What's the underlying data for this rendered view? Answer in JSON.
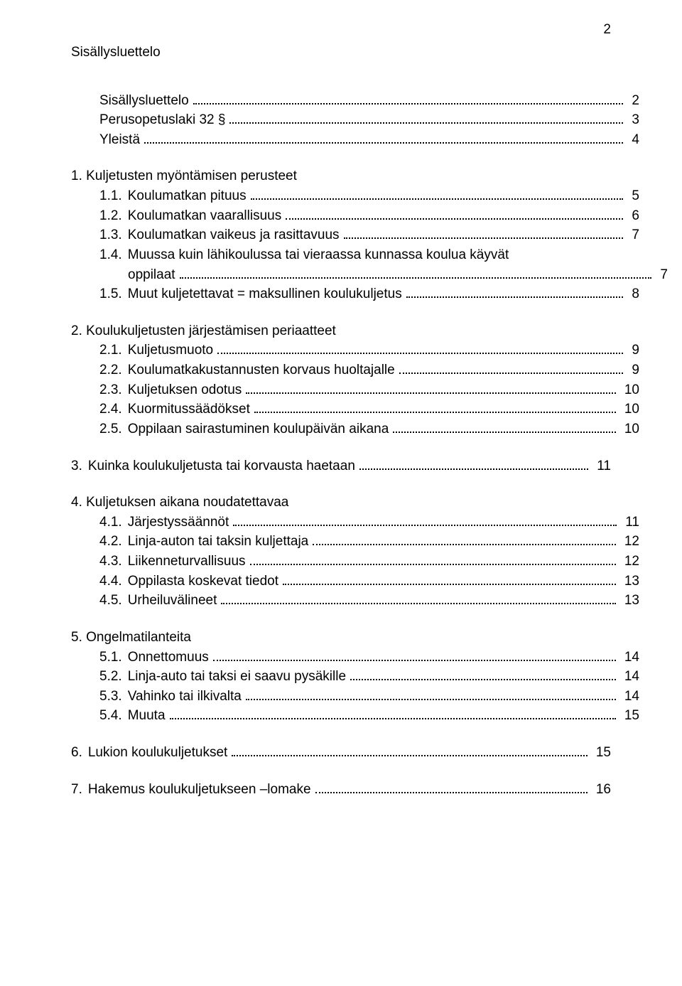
{
  "page_number": "2",
  "heading": "Sisällysluettelo",
  "top_items": [
    {
      "label": "Sisällysluettelo",
      "page": "2"
    },
    {
      "label": "Perusopetuslaki 32 §",
      "page": "3"
    },
    {
      "label": "Yleistä",
      "page": "4"
    }
  ],
  "section1": {
    "title": "1.  Kuljetusten myöntämisen perusteet",
    "items": [
      {
        "num": "1.1.",
        "label": "Koulumatkan pituus",
        "page": "5"
      },
      {
        "num": "1.2.",
        "label": "Koulumatkan vaarallisuus",
        "page": "6"
      },
      {
        "num": "1.3.",
        "label": "Koulumatkan vaikeus ja rasittavuus",
        "page": "7"
      },
      {
        "num": "1.4.",
        "label_line1": "Muussa kuin lähikoulussa tai vieraassa kunnassa koulua käyvät",
        "label_line2": "oppilaat",
        "page": "7"
      },
      {
        "num": "1.5.",
        "label": "Muut kuljetettavat = maksullinen koulukuljetus",
        "page": "8"
      }
    ]
  },
  "section2": {
    "title": "2. Koulukuljetusten järjestämisen periaatteet",
    "items": [
      {
        "num": "2.1.",
        "label": "Kuljetusmuoto",
        "page": "9"
      },
      {
        "num": "2.2.",
        "label": "Koulumatkakustannusten korvaus huoltajalle",
        "page": "9"
      },
      {
        "num": "2.3.",
        "label": "Kuljetuksen odotus",
        "page": "10"
      },
      {
        "num": "2.4.",
        "label": "Kuormitussäädökset",
        "page": "10"
      },
      {
        "num": "2.5.",
        "label": "Oppilaan sairastuminen koulupäivän aikana",
        "page": "10"
      }
    ]
  },
  "section3": {
    "items": [
      {
        "num": "3.",
        "label": "Kuinka koulukuljetusta tai korvausta haetaan",
        "page": "11"
      }
    ]
  },
  "section4": {
    "title": "4. Kuljetuksen aikana noudatettavaa",
    "items": [
      {
        "num": "4.1.",
        "label": "Järjestyssäännöt",
        "page": "11"
      },
      {
        "num": "4.2.",
        "label": "Linja-auton tai taksin kuljettaja",
        "page": "12"
      },
      {
        "num": "4.3.",
        "label": "Liikenneturvallisuus",
        "page": "12"
      },
      {
        "num": "4.4.",
        "label": "Oppilasta koskevat tiedot",
        "page": "13"
      },
      {
        "num": "4.5.",
        "label": "Urheiluvälineet",
        "page": "13"
      }
    ]
  },
  "section5": {
    "title": "5. Ongelmatilanteita",
    "items": [
      {
        "num": "5.1.",
        "label": "Onnettomuus",
        "page": "14"
      },
      {
        "num": "5.2.",
        "label": "Linja-auto tai taksi ei saavu pysäkille",
        "page": "14"
      },
      {
        "num": "5.3.",
        "label": "Vahinko tai ilkivalta",
        "page": "14"
      },
      {
        "num": "5.4.",
        "label": "Muuta",
        "page": "15"
      }
    ]
  },
  "bottom_items": [
    {
      "num": "6.",
      "label": "Lukion koulukuljetukset",
      "page": "15"
    },
    {
      "num": "7.",
      "label": "Hakemus koulukuljetukseen –lomake",
      "page": "16"
    }
  ]
}
